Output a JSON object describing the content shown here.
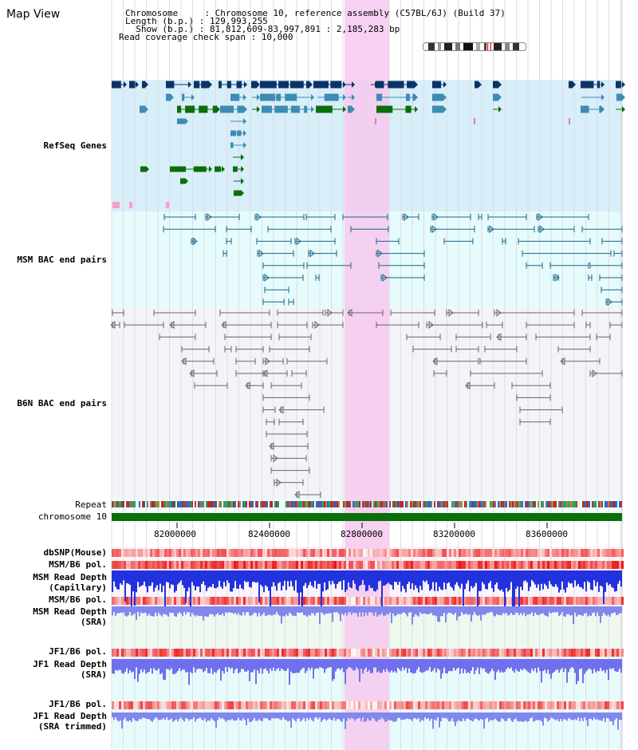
{
  "title": "Map View",
  "info": {
    "line1": "Chromosome     : Chromosome 10, reference assembly (C57BL/6J) (Build 37)",
    "line2": "Length (b.p.) : 129,993,255",
    "line3": "  Show (b.p.) : 81,812,609-83,997,891 : 2,185,283 bp",
    "line4": "Read coverage check span : 10,000"
  },
  "tracks": {
    "refseq": "RefSeq Genes",
    "msm_bac": "MSM BAC end pairs",
    "b6n_bac": "B6N BAC end pairs",
    "repeat": "Repeat",
    "chromosome": "chromosome 10",
    "dbsnp": "dbSNP(Mouse)",
    "msm_b6_pol": "MSM/B6 pol.",
    "msm_rd_cap_1": "MSM Read Depth",
    "msm_rd_cap_2": "(Capillary)",
    "msm_b6_pol_2": "MSM/B6 pol.",
    "msm_rd_sra_1": "MSM Read Depth",
    "msm_rd_sra_2": "(SRA)",
    "jf1_b6_pol": "JF1/B6 pol.",
    "jf1_rd_sra_1": "JF1 Read Depth",
    "jf1_rd_sra_2": "(SRA)",
    "jf1_b6_pol_2": "JF1/B6 pol.",
    "jf1_rd_trim_1": "JF1 Read Depth",
    "jf1_rd_trim_2": "(SRA trimmed)"
  },
  "ruler": {
    "ticks": [
      "82000000",
      "82400000",
      "82800000",
      "83200000",
      "83600000"
    ]
  },
  "colors": {
    "refseq_bg": "#d8eef8",
    "msm_bac_bg": "#e6fbfb",
    "b6n_bac_bg": "#f4f4f8",
    "highlight": "#f8c8ee",
    "chromosome_bar": "#0a6e0a",
    "gene_navy": "#0c3366",
    "gene_teal": "#3c8cb4",
    "gene_green": "#0a6e0a",
    "msm_line": "#1a6688",
    "b6n_line": "#666666",
    "label_blue": "#0000aa",
    "label_teal": "#006680",
    "label_orange": "#e6a000",
    "label_gray": "#333333"
  }
}
